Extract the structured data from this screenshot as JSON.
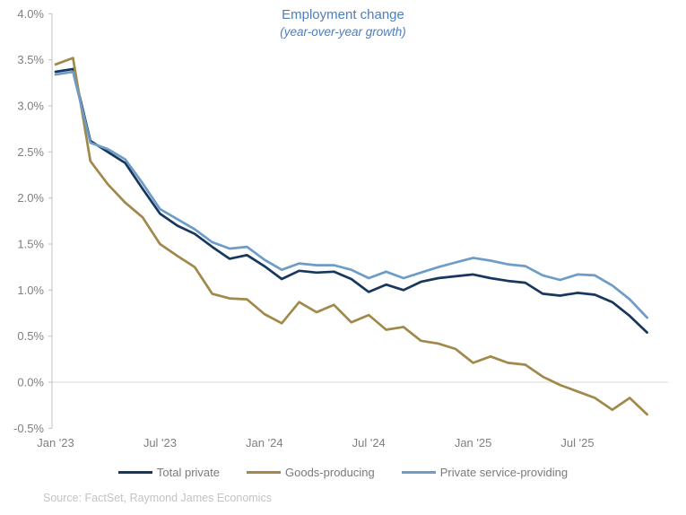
{
  "header": {
    "title": "Employment change",
    "subtitle": "(year-over-year growth)"
  },
  "source": "Source: FactSet, Raymond James Economics",
  "colors": {
    "title": "#4d7ebf",
    "axis_line": "#c0c0c0",
    "gridline": "#d9d9d9",
    "tick_label": "#7f7f7f",
    "legend_text": "#7a7a7a",
    "source_text": "#c3c3c3",
    "total_private": "#17375d",
    "goods_producing": "#a0894a",
    "private_service": "#6d9cc8"
  },
  "chart_data": {
    "type": "line",
    "title": "Employment change",
    "subtitle": "(year-over-year growth)",
    "xlabel": "",
    "ylabel": "",
    "ylim": [
      -0.5,
      4.0
    ],
    "y_step": 0.5,
    "y_tick_labels": [
      "4.0%",
      "3.5%",
      "3.0%",
      "2.5%",
      "2.0%",
      "1.5%",
      "1.0%",
      "0.5%",
      "0.0%",
      "-0.5%"
    ],
    "x_tick_labels": [
      "Jan '23",
      "Jul '23",
      "Jan '24",
      "Jul '24",
      "Jan '25",
      "Jul '25"
    ],
    "x_tick_indices": [
      0,
      6,
      12,
      18,
      24,
      30
    ],
    "grid": "horizontal line at 0.0% only",
    "legend_position": "bottom",
    "categories": [
      "Jan '23",
      "Feb '23",
      "Mar '23",
      "Apr '23",
      "May '23",
      "Jun '23",
      "Jul '23",
      "Aug '23",
      "Sep '23",
      "Oct '23",
      "Nov '23",
      "Dec '23",
      "Jan '24",
      "Feb '24",
      "Mar '24",
      "Apr '24",
      "May '24",
      "Jun '24",
      "Jul '24",
      "Aug '24",
      "Sep '24",
      "Oct '24",
      "Nov '24",
      "Dec '24",
      "Jan '25",
      "Feb '25",
      "Mar '25",
      "Apr '25",
      "May '25",
      "Jun '25",
      "Jul '25",
      "Aug '25",
      "Sep '25",
      "Oct '25",
      "Nov '25"
    ],
    "series": [
      {
        "name": "Total private",
        "color": "#17375d",
        "values": [
          3.37,
          3.4,
          2.62,
          2.5,
          2.38,
          2.1,
          1.83,
          1.7,
          1.61,
          1.47,
          1.34,
          1.38,
          1.26,
          1.12,
          1.21,
          1.19,
          1.2,
          1.12,
          0.98,
          1.06,
          1.0,
          1.09,
          1.13,
          1.15,
          1.17,
          1.13,
          1.1,
          1.08,
          0.96,
          0.94,
          0.97,
          0.95,
          0.87,
          0.72,
          0.54
        ]
      },
      {
        "name": "Goods-producing",
        "color": "#a0894a",
        "values": [
          3.45,
          3.52,
          2.4,
          2.15,
          1.95,
          1.79,
          1.5,
          1.37,
          1.25,
          0.96,
          0.91,
          0.9,
          0.74,
          0.64,
          0.87,
          0.76,
          0.84,
          0.65,
          0.73,
          0.57,
          0.6,
          0.45,
          0.42,
          0.36,
          0.21,
          0.28,
          0.21,
          0.19,
          0.06,
          -0.03,
          -0.1,
          -0.17,
          -0.3,
          -0.17,
          -0.35
        ]
      },
      {
        "name": "Private service-providing",
        "color": "#6d9cc8",
        "values": [
          3.34,
          3.37,
          2.6,
          2.53,
          2.42,
          2.16,
          1.88,
          1.77,
          1.66,
          1.52,
          1.45,
          1.47,
          1.33,
          1.22,
          1.29,
          1.27,
          1.27,
          1.22,
          1.13,
          1.2,
          1.13,
          1.19,
          1.25,
          1.3,
          1.35,
          1.32,
          1.28,
          1.26,
          1.16,
          1.11,
          1.17,
          1.16,
          1.05,
          0.9,
          0.7
        ]
      }
    ]
  }
}
